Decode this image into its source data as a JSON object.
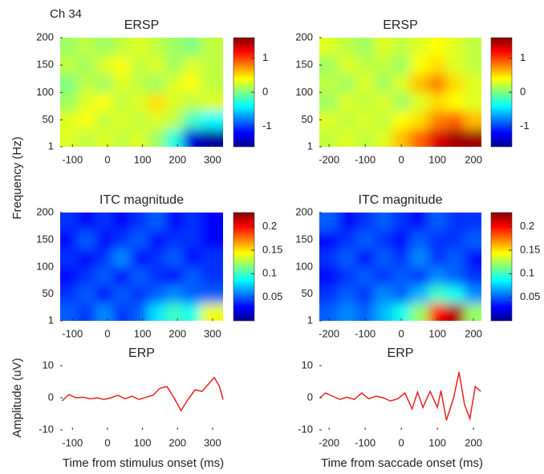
{
  "chart_data": [
    {
      "type": "heatmap",
      "title": "ERSP",
      "annotation": "Ch 34",
      "ylabel": "Frequency (Hz)",
      "x": [
        -110,
        -60,
        -10,
        40,
        90,
        140,
        190,
        240,
        290
      ],
      "y": [
        17,
        50,
        83,
        117,
        150,
        183
      ],
      "z": [
        [
          0.3,
          0.2,
          0.3,
          0.2,
          0.3,
          0.1,
          -0.3,
          -1.3,
          -1.5
        ],
        [
          0.3,
          0.4,
          0.2,
          0.3,
          0.2,
          0.3,
          0.2,
          -0.2,
          -0.4
        ],
        [
          0.1,
          0.3,
          0.4,
          0.2,
          0.3,
          0.5,
          0.3,
          0.2,
          0.3
        ],
        [
          0.0,
          0.2,
          0.1,
          0.3,
          0.2,
          0.1,
          0.3,
          0.4,
          0.2
        ],
        [
          0.2,
          0.1,
          0.3,
          0.4,
          0.2,
          0.3,
          0.1,
          0.3,
          0.2
        ],
        [
          0.1,
          0.2,
          0.1,
          0.2,
          0.3,
          0.2,
          0.1,
          0.0,
          0.2
        ]
      ],
      "xlim": [
        -135,
        330
      ],
      "xticks": [
        -100,
        0,
        100,
        200,
        300
      ],
      "ylim": [
        1,
        200
      ],
      "yticks": [
        1,
        50,
        100,
        150,
        200
      ],
      "colormap": "jet",
      "clim": [
        -1.6,
        1.6
      ],
      "cticks": [
        -1,
        0,
        1
      ]
    },
    {
      "type": "heatmap",
      "title": "ERSP",
      "x": [
        -200,
        -150,
        -100,
        -50,
        0,
        50,
        100,
        150,
        200
      ],
      "y": [
        17,
        50,
        83,
        117,
        150,
        183
      ],
      "z": [
        [
          0.2,
          0.3,
          0.2,
          0.3,
          0.6,
          0.9,
          1.3,
          1.5,
          1.5
        ],
        [
          0.3,
          0.2,
          0.3,
          0.2,
          0.4,
          0.5,
          0.8,
          0.9,
          0.6
        ],
        [
          0.1,
          0.3,
          0.2,
          0.3,
          0.1,
          0.3,
          0.5,
          0.4,
          0.3
        ],
        [
          0.2,
          0.1,
          0.3,
          0.1,
          0.3,
          0.6,
          0.8,
          0.5,
          0.3
        ],
        [
          0.1,
          0.3,
          0.2,
          0.2,
          0.1,
          0.4,
          0.5,
          0.3,
          0.2
        ],
        [
          0.3,
          0.2,
          0.1,
          0.3,
          0.2,
          0.3,
          0.4,
          0.3,
          0.2
        ]
      ],
      "xlim": [
        -227,
        222
      ],
      "xticks": [
        -200,
        -100,
        0,
        100,
        200
      ],
      "ylim": [
        1,
        200
      ],
      "yticks": [
        1,
        50,
        100,
        150,
        200
      ],
      "colormap": "jet",
      "clim": [
        -1.6,
        1.6
      ],
      "cticks": [
        -1,
        0,
        1
      ]
    },
    {
      "type": "heatmap",
      "title": "ITC magnitude",
      "x": [
        -110,
        -60,
        -10,
        40,
        90,
        140,
        190,
        240,
        290
      ],
      "y": [
        17,
        50,
        83,
        117,
        150,
        183
      ],
      "z": [
        [
          0.05,
          0.04,
          0.06,
          0.04,
          0.05,
          0.08,
          0.1,
          0.09,
          0.14
        ],
        [
          0.04,
          0.05,
          0.03,
          0.05,
          0.04,
          0.05,
          0.06,
          0.05,
          0.05
        ],
        [
          0.03,
          0.04,
          0.05,
          0.03,
          0.05,
          0.04,
          0.03,
          0.05,
          0.04
        ],
        [
          0.04,
          0.03,
          0.04,
          0.06,
          0.03,
          0.04,
          0.05,
          0.03,
          0.04
        ],
        [
          0.03,
          0.05,
          0.03,
          0.04,
          0.05,
          0.03,
          0.04,
          0.04,
          0.03
        ],
        [
          0.04,
          0.03,
          0.04,
          0.03,
          0.04,
          0.05,
          0.03,
          0.04,
          0.03
        ]
      ],
      "xlim": [
        -135,
        330
      ],
      "xticks": [
        -100,
        0,
        100,
        200,
        300
      ],
      "ylim": [
        1,
        200
      ],
      "yticks": [
        1,
        50,
        100,
        150,
        200
      ],
      "colormap": "jet",
      "clim": [
        0,
        0.23
      ],
      "cticks": [
        0.05,
        0.1,
        0.15,
        0.2
      ]
    },
    {
      "type": "heatmap",
      "title": "ITC magnitude",
      "x": [
        -200,
        -150,
        -100,
        -50,
        0,
        50,
        100,
        150,
        200
      ],
      "y": [
        17,
        50,
        83,
        117,
        150,
        183
      ],
      "z": [
        [
          0.05,
          0.06,
          0.05,
          0.07,
          0.09,
          0.12,
          0.2,
          0.22,
          0.12
        ],
        [
          0.04,
          0.05,
          0.04,
          0.06,
          0.05,
          0.07,
          0.1,
          0.09,
          0.06
        ],
        [
          0.03,
          0.04,
          0.05,
          0.04,
          0.05,
          0.04,
          0.06,
          0.05,
          0.04
        ],
        [
          0.04,
          0.05,
          0.03,
          0.05,
          0.04,
          0.06,
          0.04,
          0.05,
          0.03
        ],
        [
          0.03,
          0.04,
          0.05,
          0.04,
          0.03,
          0.05,
          0.04,
          0.04,
          0.05
        ],
        [
          0.05,
          0.03,
          0.04,
          0.05,
          0.04,
          0.03,
          0.05,
          0.04,
          0.04
        ]
      ],
      "xlim": [
        -227,
        222
      ],
      "xticks": [
        -200,
        -100,
        0,
        100,
        200
      ],
      "ylim": [
        1,
        200
      ],
      "yticks": [
        1,
        50,
        100,
        150,
        200
      ],
      "colormap": "jet",
      "clim": [
        0,
        0.23
      ],
      "cticks": [
        0.05,
        0.1,
        0.15,
        0.2
      ]
    },
    {
      "type": "line",
      "title": "ERP",
      "ylabel": "Amplitude (uV)",
      "xlabel": "Time from stimulus onset (ms)",
      "color": "#e8211e",
      "x": [
        -130,
        -110,
        -90,
        -70,
        -50,
        -30,
        -10,
        10,
        30,
        50,
        70,
        90,
        110,
        130,
        150,
        170,
        190,
        210,
        230,
        250,
        270,
        290,
        305,
        320,
        330
      ],
      "values": [
        -1,
        1,
        0,
        0.2,
        -0.3,
        0,
        -0.5,
        0,
        0.8,
        -0.3,
        0.5,
        -0.5,
        0.2,
        0.8,
        3,
        3.5,
        0,
        -4,
        -0.5,
        2.5,
        2,
        4.5,
        6.3,
        3.5,
        -0.5
      ],
      "xlim": [
        -135,
        330
      ],
      "xticks": [
        -100,
        0,
        100,
        200,
        300
      ],
      "ylim": [
        -10,
        10
      ],
      "yticks": [
        -10,
        0,
        10
      ]
    },
    {
      "type": "line",
      "title": "ERP",
      "xlabel": "Time from saccade onset (ms)",
      "color": "#e8211e",
      "x": [
        -225,
        -210,
        -190,
        -170,
        -150,
        -130,
        -110,
        -90,
        -70,
        -50,
        -30,
        -10,
        10,
        30,
        45,
        60,
        80,
        100,
        110,
        125,
        145,
        160,
        175,
        190,
        205,
        220
      ],
      "values": [
        0,
        1.5,
        0.5,
        -0.5,
        0.2,
        -0.5,
        1.5,
        -0.3,
        0.5,
        0,
        -1,
        -0.3,
        1.5,
        -3.5,
        1.8,
        -3,
        2,
        -3,
        2.2,
        -7,
        0,
        8,
        -2,
        -6.5,
        3.5,
        2
      ],
      "xlim": [
        -227,
        222
      ],
      "xticks": [
        -200,
        -100,
        0,
        100,
        200
      ],
      "ylim": [
        -10,
        10
      ],
      "yticks": [
        -10,
        0,
        10
      ]
    }
  ]
}
